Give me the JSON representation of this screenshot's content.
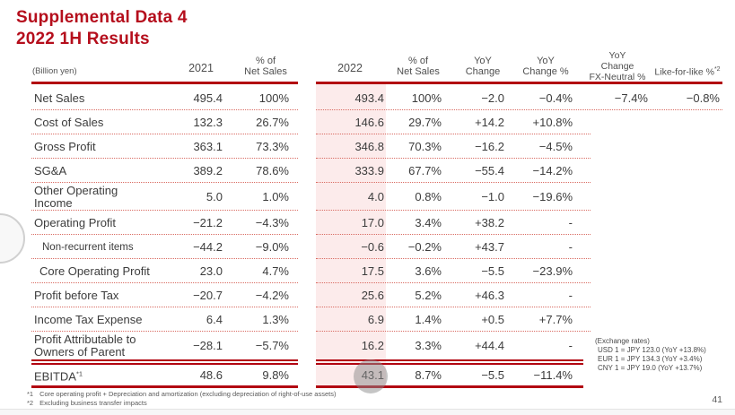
{
  "slide": {
    "title": "Supplemental Data 4\n2022 1H Results",
    "page_number": "41"
  },
  "colors": {
    "title_red": "#b50e1c",
    "line_red": "#b20511",
    "dotted_red": "#d96b62",
    "band_pink": "#fcebeb"
  },
  "table": {
    "unit_label": "(Billion yen)",
    "headers": {
      "y2021": "2021",
      "pct_2021": "% of\nNet Sales",
      "y2022": "2022",
      "pct_2022": "% of\nNet Sales",
      "yoy_change": "YoY\nChange",
      "yoy_change_pct": "YoY\nChange %",
      "yoy_fx_neutral": "YoY\nChange\nFX-Neutral %",
      "like_for_like": "Like-for-like %",
      "like_for_like_sup": "*2"
    },
    "rows": [
      {
        "label": "Net Sales",
        "v2021": "495.4",
        "p2021": "100%",
        "v2022": "493.4",
        "p2022": "100%",
        "yoy": "−2.0",
        "yoyp": "−0.4%",
        "fxn": "−7.4%",
        "lfl": "−0.8%",
        "variant": "wide"
      },
      {
        "label": "Cost of Sales",
        "v2021": "132.3",
        "p2021": "26.7%",
        "v2022": "146.6",
        "p2022": "29.7%",
        "yoy": "+14.2",
        "yoyp": "+10.8%",
        "fxn": "",
        "lfl": ""
      },
      {
        "label": "Gross Profit",
        "v2021": "363.1",
        "p2021": "73.3%",
        "v2022": "346.8",
        "p2022": "70.3%",
        "yoy": "−16.2",
        "yoyp": "−4.5%",
        "fxn": "",
        "lfl": ""
      },
      {
        "label": "SG&A",
        "v2021": "389.2",
        "p2021": "78.6%",
        "v2022": "333.9",
        "p2022": "67.7%",
        "yoy": "−55.4",
        "yoyp": "−14.2%",
        "fxn": "",
        "lfl": ""
      },
      {
        "label": "Other Operating\nIncome",
        "v2021": "5.0",
        "p2021": "1.0%",
        "v2022": "4.0",
        "p2022": "0.8%",
        "yoy": "−1.0",
        "yoyp": "−19.6%",
        "fxn": "",
        "lfl": "",
        "variant": "tall"
      },
      {
        "label": "Operating Profit",
        "v2021": "−21.2",
        "p2021": "−4.3%",
        "v2022": "17.0",
        "p2022": "3.4%",
        "yoy": "+38.2",
        "yoyp": "-",
        "fxn": "",
        "lfl": ""
      },
      {
        "label": "Non-recurrent items",
        "v2021": "−44.2",
        "p2021": "−9.0%",
        "v2022": "−0.6",
        "p2022": "−0.2%",
        "yoy": "+43.7",
        "yoyp": "-",
        "fxn": "",
        "lfl": "",
        "variant": "sub"
      },
      {
        "label": "Core Operating Profit",
        "v2021": "23.0",
        "p2021": "4.7%",
        "v2022": "17.5",
        "p2022": "3.6%",
        "yoy": "−5.5",
        "yoyp": "−23.9%",
        "fxn": "",
        "lfl": "",
        "variant": "core"
      },
      {
        "label": "Profit before Tax",
        "v2021": "−20.7",
        "p2021": "−4.2%",
        "v2022": "25.6",
        "p2022": "5.2%",
        "yoy": "+46.3",
        "yoyp": "-",
        "fxn": "",
        "lfl": ""
      },
      {
        "label": "Income Tax Expense",
        "v2021": "6.4",
        "p2021": "1.3%",
        "v2022": "6.9",
        "p2022": "1.4%",
        "yoy": "+0.5",
        "yoyp": "+7.7%",
        "fxn": "",
        "lfl": ""
      },
      {
        "label": "Profit Attributable to\nOwners of Parent",
        "v2021": "−28.1",
        "p2021": "−5.7%",
        "v2022": "16.2",
        "p2022": "3.3%",
        "yoy": "+44.4",
        "yoyp": "-",
        "fxn": "",
        "lfl": "",
        "variant": "tall nosep"
      },
      {
        "label": "EBITDA",
        "label_sup": "*1",
        "v2021": "48.6",
        "p2021": "9.8%",
        "v2022": "43.1",
        "p2022": "8.7%",
        "yoy": "−5.5",
        "yoyp": "−11.4%",
        "fxn": "",
        "lfl": "",
        "variant": "last nosep"
      }
    ]
  },
  "exchange_rates": {
    "title": "(Exchange rates)",
    "lines": [
      "USD 1 = JPY 123.0 (YoY +13.8%)",
      "EUR 1 = JPY 134.3 (YoY +3.4%)",
      "CNY 1 = JPY 19.0 (YoY +13.7%)"
    ]
  },
  "footnotes": [
    {
      "mark": "*1",
      "text": "Core operating profit + Depreciation and amortization (excluding depreciation of right-of-use assets)"
    },
    {
      "mark": "*2",
      "text": "Excluding business transfer impacts"
    }
  ]
}
